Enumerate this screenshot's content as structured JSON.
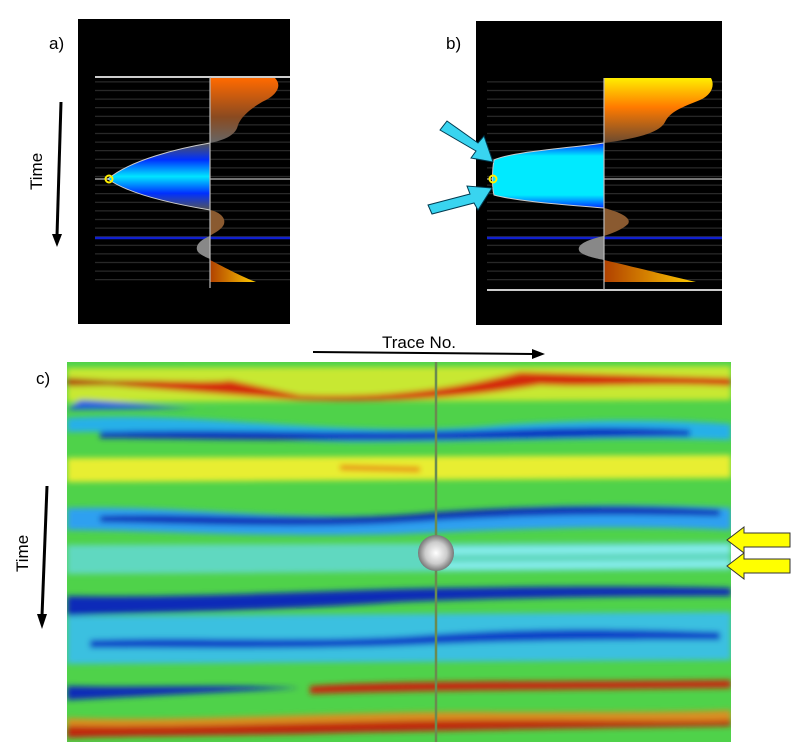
{
  "panels": {
    "a": {
      "label": "a)"
    },
    "b": {
      "label": "b)"
    },
    "c": {
      "label": "c)"
    }
  },
  "axes": {
    "time_label_top": "Time",
    "time_label_bottom": "Time",
    "trace_label": "Trace No."
  },
  "colors": {
    "background_panel": "#000000",
    "trough": "#00e5ff",
    "peak": "#ff6a00",
    "peak_bright": "#ffee00",
    "heatmap_base": "#4fd24a",
    "arrow_cyan": "#39d4f0",
    "arrow_yellow": "#ffff00"
  }
}
